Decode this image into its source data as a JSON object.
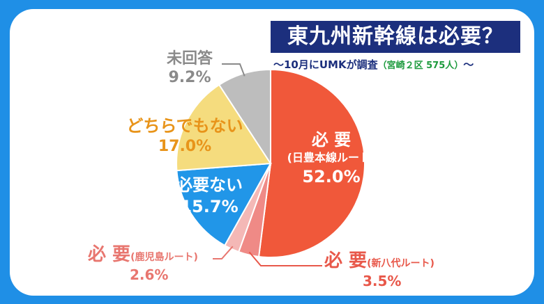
{
  "title": "東九州新幹線は必要？",
  "subtitle": {
    "prefix": "～10月にUMKが調査",
    "sample": "（宮崎２区 575人）",
    "suffix": "～"
  },
  "chart_data": {
    "type": "pie",
    "start_angle_deg": 0,
    "direction": "clockwise",
    "slices": [
      {
        "label": "必 要",
        "sublabel": "(日豊本線ルート)",
        "value": 52.0,
        "value_label": "52.0%",
        "color": "#f0583a"
      },
      {
        "label": "必 要",
        "sublabel": "(新八代ルート)",
        "value": 3.5,
        "value_label": "3.5%",
        "color": "#ef8a86"
      },
      {
        "label": "必 要",
        "sublabel": "(鹿児島ルート)",
        "value": 2.6,
        "value_label": "2.6%",
        "color": "#f4b8b6"
      },
      {
        "label": "必要ない",
        "sublabel": "",
        "value": 15.7,
        "value_label": "15.7%",
        "color": "#2196e8"
      },
      {
        "label": "どちらでもない",
        "sublabel": "",
        "value": 17.0,
        "value_label": "17.0%",
        "color": "#f5dc7e"
      },
      {
        "label": "未回答",
        "sublabel": "",
        "value": 9.2,
        "value_label": "9.2%",
        "color": "#bdbdbd"
      }
    ]
  }
}
